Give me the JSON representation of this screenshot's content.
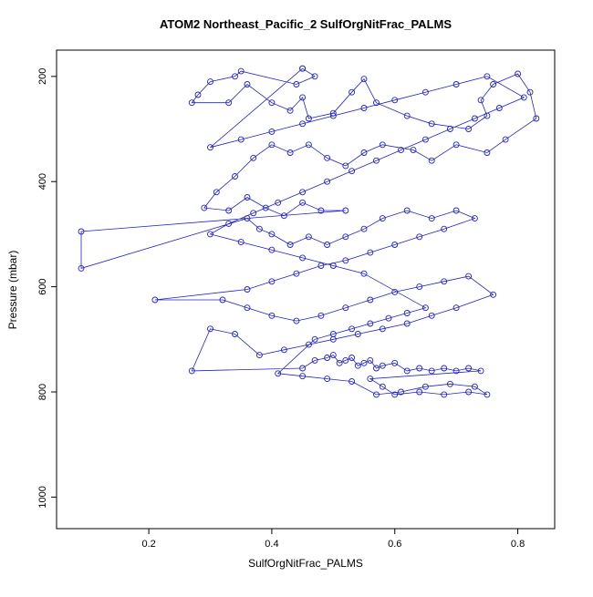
{
  "chart_data": {
    "type": "line",
    "title": "ATOM2 Northeast_Pacific_2 SulfOrgNitFrac_PALMS",
    "xlabel": "SulfOrgNitFrac_PALMS",
    "ylabel": "Pressure (mbar)",
    "x_ticks": [
      0.2,
      0.4,
      0.6,
      0.8
    ],
    "y_ticks": [
      200,
      400,
      600,
      800,
      1000
    ],
    "xlim": [
      0.05,
      0.86
    ],
    "ylim": [
      150,
      1060
    ],
    "y_axis_reversed": true,
    "grid": false,
    "legend": "none",
    "marker": "open-circle",
    "series_color": "#2222cc",
    "axis_color": "#000000",
    "points": [
      [
        0.45,
        185
      ],
      [
        0.47,
        200
      ],
      [
        0.44,
        215
      ],
      [
        0.35,
        190
      ],
      [
        0.34,
        200
      ],
      [
        0.3,
        210
      ],
      [
        0.28,
        235
      ],
      [
        0.27,
        250
      ],
      [
        0.33,
        250
      ],
      [
        0.36,
        215
      ],
      [
        0.4,
        250
      ],
      [
        0.43,
        265
      ],
      [
        0.45,
        240
      ],
      [
        0.46,
        280
      ],
      [
        0.5,
        270
      ],
      [
        0.53,
        230
      ],
      [
        0.55,
        205
      ],
      [
        0.57,
        250
      ],
      [
        0.62,
        275
      ],
      [
        0.66,
        290
      ],
      [
        0.72,
        300
      ],
      [
        0.75,
        275
      ],
      [
        0.74,
        245
      ],
      [
        0.76,
        215
      ],
      [
        0.8,
        195
      ],
      [
        0.82,
        230
      ],
      [
        0.83,
        280
      ],
      [
        0.78,
        320
      ],
      [
        0.75,
        345
      ],
      [
        0.7,
        330
      ],
      [
        0.66,
        360
      ],
      [
        0.63,
        340
      ],
      [
        0.58,
        330
      ],
      [
        0.55,
        345
      ],
      [
        0.52,
        370
      ],
      [
        0.49,
        355
      ],
      [
        0.46,
        330
      ],
      [
        0.43,
        345
      ],
      [
        0.4,
        330
      ],
      [
        0.37,
        355
      ],
      [
        0.34,
        390
      ],
      [
        0.31,
        420
      ],
      [
        0.29,
        450
      ],
      [
        0.33,
        455
      ],
      [
        0.36,
        430
      ],
      [
        0.39,
        450
      ],
      [
        0.42,
        465
      ],
      [
        0.45,
        440
      ],
      [
        0.48,
        455
      ],
      [
        0.52,
        455
      ],
      [
        0.09,
        495
      ],
      [
        0.09,
        565
      ],
      [
        0.36,
        470
      ],
      [
        0.38,
        490
      ],
      [
        0.4,
        500
      ],
      [
        0.43,
        520
      ],
      [
        0.46,
        505
      ],
      [
        0.49,
        520
      ],
      [
        0.52,
        505
      ],
      [
        0.55,
        490
      ],
      [
        0.58,
        470
      ],
      [
        0.62,
        455
      ],
      [
        0.66,
        470
      ],
      [
        0.7,
        455
      ],
      [
        0.73,
        470
      ],
      [
        0.68,
        490
      ],
      [
        0.64,
        505
      ],
      [
        0.6,
        520
      ],
      [
        0.56,
        535
      ],
      [
        0.52,
        550
      ],
      [
        0.48,
        560
      ],
      [
        0.44,
        575
      ],
      [
        0.4,
        590
      ],
      [
        0.36,
        605
      ],
      [
        0.21,
        625
      ],
      [
        0.32,
        625
      ],
      [
        0.36,
        640
      ],
      [
        0.4,
        655
      ],
      [
        0.44,
        665
      ],
      [
        0.48,
        655
      ],
      [
        0.52,
        640
      ],
      [
        0.56,
        625
      ],
      [
        0.6,
        610
      ],
      [
        0.64,
        600
      ],
      [
        0.68,
        590
      ],
      [
        0.72,
        580
      ],
      [
        0.76,
        615
      ],
      [
        0.7,
        640
      ],
      [
        0.66,
        655
      ],
      [
        0.62,
        670
      ],
      [
        0.58,
        680
      ],
      [
        0.54,
        690
      ],
      [
        0.5,
        700
      ],
      [
        0.46,
        710
      ],
      [
        0.42,
        720
      ],
      [
        0.38,
        730
      ],
      [
        0.34,
        690
      ],
      [
        0.3,
        680
      ],
      [
        0.27,
        760
      ],
      [
        0.45,
        755
      ],
      [
        0.47,
        740
      ],
      [
        0.49,
        735
      ],
      [
        0.5,
        730
      ],
      [
        0.51,
        745
      ],
      [
        0.52,
        740
      ],
      [
        0.53,
        735
      ],
      [
        0.54,
        750
      ],
      [
        0.55,
        745
      ],
      [
        0.56,
        740
      ],
      [
        0.57,
        755
      ],
      [
        0.58,
        750
      ],
      [
        0.6,
        745
      ],
      [
        0.62,
        760
      ],
      [
        0.64,
        755
      ],
      [
        0.66,
        760
      ],
      [
        0.68,
        755
      ],
      [
        0.7,
        760
      ],
      [
        0.72,
        755
      ],
      [
        0.74,
        760
      ],
      [
        0.56,
        775
      ],
      [
        0.58,
        790
      ],
      [
        0.6,
        805
      ],
      [
        0.64,
        800
      ],
      [
        0.68,
        805
      ],
      [
        0.72,
        800
      ],
      [
        0.75,
        805
      ],
      [
        0.73,
        790
      ],
      [
        0.69,
        785
      ],
      [
        0.65,
        790
      ],
      [
        0.61,
        800
      ],
      [
        0.57,
        805
      ],
      [
        0.53,
        780
      ],
      [
        0.49,
        775
      ],
      [
        0.45,
        770
      ],
      [
        0.41,
        765
      ],
      [
        0.47,
        700
      ],
      [
        0.5,
        690
      ],
      [
        0.53,
        680
      ],
      [
        0.56,
        670
      ],
      [
        0.59,
        660
      ],
      [
        0.62,
        650
      ],
      [
        0.65,
        640
      ],
      [
        0.55,
        575
      ],
      [
        0.5,
        560
      ],
      [
        0.45,
        545
      ],
      [
        0.4,
        530
      ],
      [
        0.35,
        515
      ],
      [
        0.3,
        500
      ],
      [
        0.33,
        480
      ],
      [
        0.37,
        460
      ],
      [
        0.41,
        440
      ],
      [
        0.45,
        420
      ],
      [
        0.49,
        400
      ],
      [
        0.53,
        380
      ],
      [
        0.57,
        360
      ],
      [
        0.61,
        340
      ],
      [
        0.65,
        320
      ],
      [
        0.69,
        300
      ],
      [
        0.73,
        280
      ],
      [
        0.77,
        260
      ],
      [
        0.81,
        240
      ],
      [
        0.75,
        200
      ],
      [
        0.7,
        215
      ],
      [
        0.65,
        230
      ],
      [
        0.6,
        245
      ],
      [
        0.55,
        260
      ],
      [
        0.5,
        275
      ],
      [
        0.45,
        290
      ],
      [
        0.4,
        305
      ],
      [
        0.35,
        320
      ],
      [
        0.3,
        335
      ],
      [
        0.45,
        185
      ]
    ]
  }
}
